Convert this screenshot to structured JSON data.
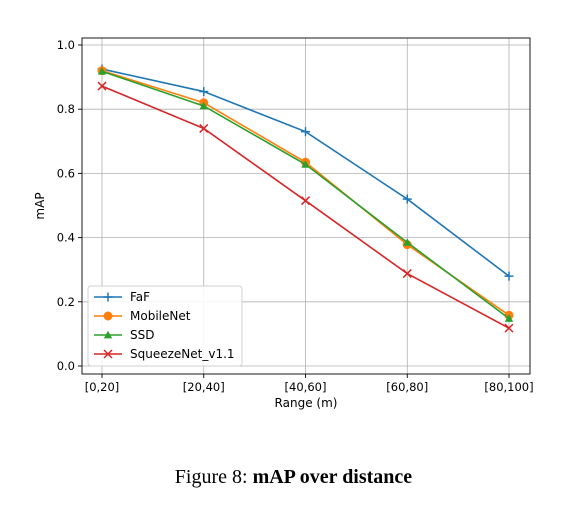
{
  "chart_data": {
    "type": "line",
    "xlabel": "Range (m)",
    "ylabel": "mAP",
    "categories": [
      "[0,20]",
      "[20,40]",
      "[40,60]",
      "[60,80]",
      "[80,100]"
    ],
    "ylim": [
      0.0,
      1.0
    ],
    "yticks": [
      "0.0",
      "0.2",
      "0.4",
      "0.6",
      "0.8",
      "1.0"
    ],
    "grid": true,
    "legend_position": "lower-left",
    "series": [
      {
        "name": "FaF",
        "color": "#1f77b4",
        "marker": "plus",
        "values": [
          0.925,
          0.855,
          0.73,
          0.52,
          0.28
        ]
      },
      {
        "name": "MobileNet",
        "color": "#ff7f0e",
        "marker": "circle",
        "values": [
          0.92,
          0.82,
          0.635,
          0.378,
          0.158
        ]
      },
      {
        "name": "SSD",
        "color": "#2ca02c",
        "marker": "triangle",
        "values": [
          0.918,
          0.81,
          0.628,
          0.385,
          0.148
        ]
      },
      {
        "name": "SqueezeNet_v1.1",
        "color": "#d62728",
        "marker": "x",
        "values": [
          0.872,
          0.74,
          0.515,
          0.288,
          0.118
        ]
      }
    ]
  },
  "caption": {
    "prefix": "Figure 8: ",
    "title": "mAP over distance"
  }
}
